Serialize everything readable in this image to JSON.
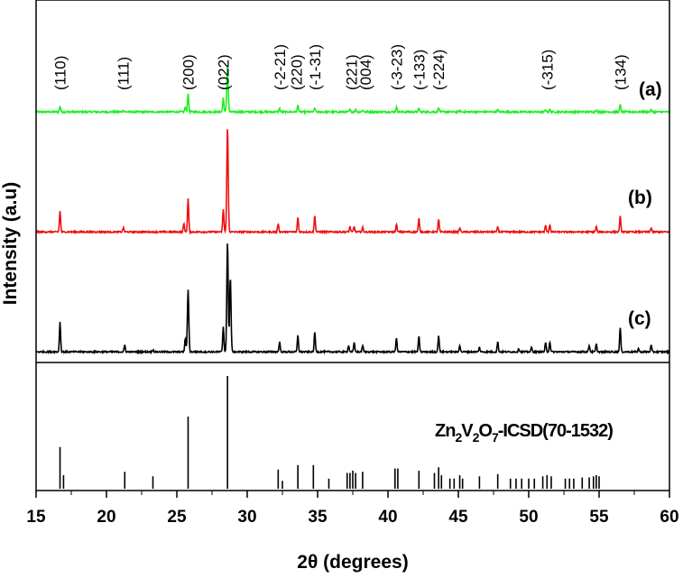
{
  "chart_data": {
    "type": "line",
    "xlabel": "2θ (degrees)",
    "ylabel": "Intensity (a.u)",
    "xlim": [
      15,
      60
    ],
    "x_ticks": [
      "15",
      "20",
      "25",
      "30",
      "35",
      "40",
      "45",
      "50",
      "55",
      "60"
    ],
    "grid": false,
    "series": [
      {
        "name": "(a)",
        "color": "#22ee22",
        "peaks": [
          {
            "x": 16.7,
            "h": 0.12
          },
          {
            "x": 21.2,
            "h": 0.04
          },
          {
            "x": 25.6,
            "h": 0.1
          },
          {
            "x": 25.8,
            "h": 0.4
          },
          {
            "x": 28.3,
            "h": 0.3
          },
          {
            "x": 28.6,
            "h": 1.0
          },
          {
            "x": 32.3,
            "h": 0.07
          },
          {
            "x": 33.6,
            "h": 0.14
          },
          {
            "x": 34.8,
            "h": 0.08
          },
          {
            "x": 37.3,
            "h": 0.05
          },
          {
            "x": 37.7,
            "h": 0.05
          },
          {
            "x": 38.2,
            "h": 0.04
          },
          {
            "x": 40.6,
            "h": 0.1
          },
          {
            "x": 42.2,
            "h": 0.07
          },
          {
            "x": 43.6,
            "h": 0.1
          },
          {
            "x": 45.1,
            "h": 0.03
          },
          {
            "x": 47.8,
            "h": 0.04
          },
          {
            "x": 51.2,
            "h": 0.05
          },
          {
            "x": 51.5,
            "h": 0.05
          },
          {
            "x": 54.8,
            "h": 0.05
          },
          {
            "x": 56.5,
            "h": 0.15
          },
          {
            "x": 58.7,
            "h": 0.04
          }
        ]
      },
      {
        "name": "(b)",
        "color": "#ee1111",
        "peaks": [
          {
            "x": 16.7,
            "h": 0.2
          },
          {
            "x": 21.2,
            "h": 0.04
          },
          {
            "x": 25.5,
            "h": 0.08
          },
          {
            "x": 25.8,
            "h": 0.32
          },
          {
            "x": 28.3,
            "h": 0.22
          },
          {
            "x": 28.6,
            "h": 1.0
          },
          {
            "x": 32.2,
            "h": 0.08
          },
          {
            "x": 33.6,
            "h": 0.14
          },
          {
            "x": 34.8,
            "h": 0.16
          },
          {
            "x": 37.3,
            "h": 0.05
          },
          {
            "x": 37.6,
            "h": 0.05
          },
          {
            "x": 38.2,
            "h": 0.04
          },
          {
            "x": 40.6,
            "h": 0.07
          },
          {
            "x": 42.2,
            "h": 0.13
          },
          {
            "x": 43.6,
            "h": 0.12
          },
          {
            "x": 45.1,
            "h": 0.04
          },
          {
            "x": 47.8,
            "h": 0.05
          },
          {
            "x": 51.2,
            "h": 0.06
          },
          {
            "x": 51.5,
            "h": 0.07
          },
          {
            "x": 54.8,
            "h": 0.05
          },
          {
            "x": 56.5,
            "h": 0.15
          },
          {
            "x": 58.7,
            "h": 0.04
          }
        ]
      },
      {
        "name": "(c)",
        "color": "#000000",
        "peaks": [
          {
            "x": 16.7,
            "h": 0.27
          },
          {
            "x": 21.3,
            "h": 0.06
          },
          {
            "x": 23.3,
            "h": 0.02
          },
          {
            "x": 25.6,
            "h": 0.12
          },
          {
            "x": 25.8,
            "h": 0.56
          },
          {
            "x": 28.3,
            "h": 0.23
          },
          {
            "x": 28.6,
            "h": 1.0
          },
          {
            "x": 28.8,
            "h": 0.68
          },
          {
            "x": 32.3,
            "h": 0.09
          },
          {
            "x": 33.6,
            "h": 0.15
          },
          {
            "x": 34.8,
            "h": 0.18
          },
          {
            "x": 37.2,
            "h": 0.06
          },
          {
            "x": 37.6,
            "h": 0.08
          },
          {
            "x": 38.2,
            "h": 0.06
          },
          {
            "x": 40.6,
            "h": 0.13
          },
          {
            "x": 42.2,
            "h": 0.14
          },
          {
            "x": 43.6,
            "h": 0.15
          },
          {
            "x": 45.1,
            "h": 0.06
          },
          {
            "x": 46.5,
            "h": 0.04
          },
          {
            "x": 47.8,
            "h": 0.09
          },
          {
            "x": 49.3,
            "h": 0.03
          },
          {
            "x": 50.2,
            "h": 0.04
          },
          {
            "x": 51.2,
            "h": 0.08
          },
          {
            "x": 51.5,
            "h": 0.09
          },
          {
            "x": 54.3,
            "h": 0.06
          },
          {
            "x": 54.8,
            "h": 0.07
          },
          {
            "x": 56.5,
            "h": 0.22
          },
          {
            "x": 57.8,
            "h": 0.03
          },
          {
            "x": 58.7,
            "h": 0.06
          }
        ]
      }
    ],
    "reference": {
      "label_main": "Zn",
      "label_sub1": "2",
      "label_mid": "V",
      "label_sub2": "2",
      "label_mid2": "O",
      "label_sub3": "7",
      "label_tail": "-ICSD(70-1532)",
      "lines": [
        {
          "x": 16.7,
          "h": 0.37
        },
        {
          "x": 16.95,
          "h": 0.12
        },
        {
          "x": 21.3,
          "h": 0.15
        },
        {
          "x": 23.3,
          "h": 0.11
        },
        {
          "x": 25.8,
          "h": 0.64
        },
        {
          "x": 28.6,
          "h": 1.0
        },
        {
          "x": 32.2,
          "h": 0.17
        },
        {
          "x": 32.5,
          "h": 0.07
        },
        {
          "x": 33.6,
          "h": 0.21
        },
        {
          "x": 34.7,
          "h": 0.21
        },
        {
          "x": 35.8,
          "h": 0.09
        },
        {
          "x": 37.1,
          "h": 0.14
        },
        {
          "x": 37.3,
          "h": 0.14
        },
        {
          "x": 37.5,
          "h": 0.16
        },
        {
          "x": 37.7,
          "h": 0.14
        },
        {
          "x": 38.2,
          "h": 0.15
        },
        {
          "x": 40.5,
          "h": 0.18
        },
        {
          "x": 40.7,
          "h": 0.18
        },
        {
          "x": 42.2,
          "h": 0.16
        },
        {
          "x": 43.3,
          "h": 0.14
        },
        {
          "x": 43.6,
          "h": 0.19
        },
        {
          "x": 43.8,
          "h": 0.12
        },
        {
          "x": 44.4,
          "h": 0.09
        },
        {
          "x": 44.7,
          "h": 0.09
        },
        {
          "x": 45.1,
          "h": 0.12
        },
        {
          "x": 45.3,
          "h": 0.09
        },
        {
          "x": 46.5,
          "h": 0.11
        },
        {
          "x": 47.8,
          "h": 0.13
        },
        {
          "x": 48.7,
          "h": 0.09
        },
        {
          "x": 49.1,
          "h": 0.09
        },
        {
          "x": 49.5,
          "h": 0.09
        },
        {
          "x": 50.0,
          "h": 0.09
        },
        {
          "x": 50.4,
          "h": 0.09
        },
        {
          "x": 51.0,
          "h": 0.11
        },
        {
          "x": 51.3,
          "h": 0.12
        },
        {
          "x": 51.6,
          "h": 0.11
        },
        {
          "x": 52.6,
          "h": 0.09
        },
        {
          "x": 52.9,
          "h": 0.09
        },
        {
          "x": 53.2,
          "h": 0.09
        },
        {
          "x": 53.8,
          "h": 0.1
        },
        {
          "x": 54.3,
          "h": 0.1
        },
        {
          "x": 54.6,
          "h": 0.11
        },
        {
          "x": 54.8,
          "h": 0.12
        },
        {
          "x": 55.0,
          "h": 0.11
        }
      ]
    },
    "annotations": [
      {
        "text": "(110)",
        "x": 16.7
      },
      {
        "text": "(111)",
        "x": 21.2
      },
      {
        "text": "(200)",
        "x": 25.8
      },
      {
        "text": "(022)",
        "x": 28.3
      },
      {
        "text": "(-2-21)",
        "x": 32.3
      },
      {
        "text": "(220)",
        "x": 33.5
      },
      {
        "text": "(-1-31)",
        "x": 34.8
      },
      {
        "text": "(221)",
        "x": 37.4
      },
      {
        "text": "(004)",
        "x": 38.4
      },
      {
        "text": "(-3-23)",
        "x": 40.6
      },
      {
        "text": "(-133)",
        "x": 42.2
      },
      {
        "text": "(-224)",
        "x": 43.6
      },
      {
        "text": "(-315)",
        "x": 51.3
      },
      {
        "text": "(134)",
        "x": 56.5
      }
    ]
  }
}
